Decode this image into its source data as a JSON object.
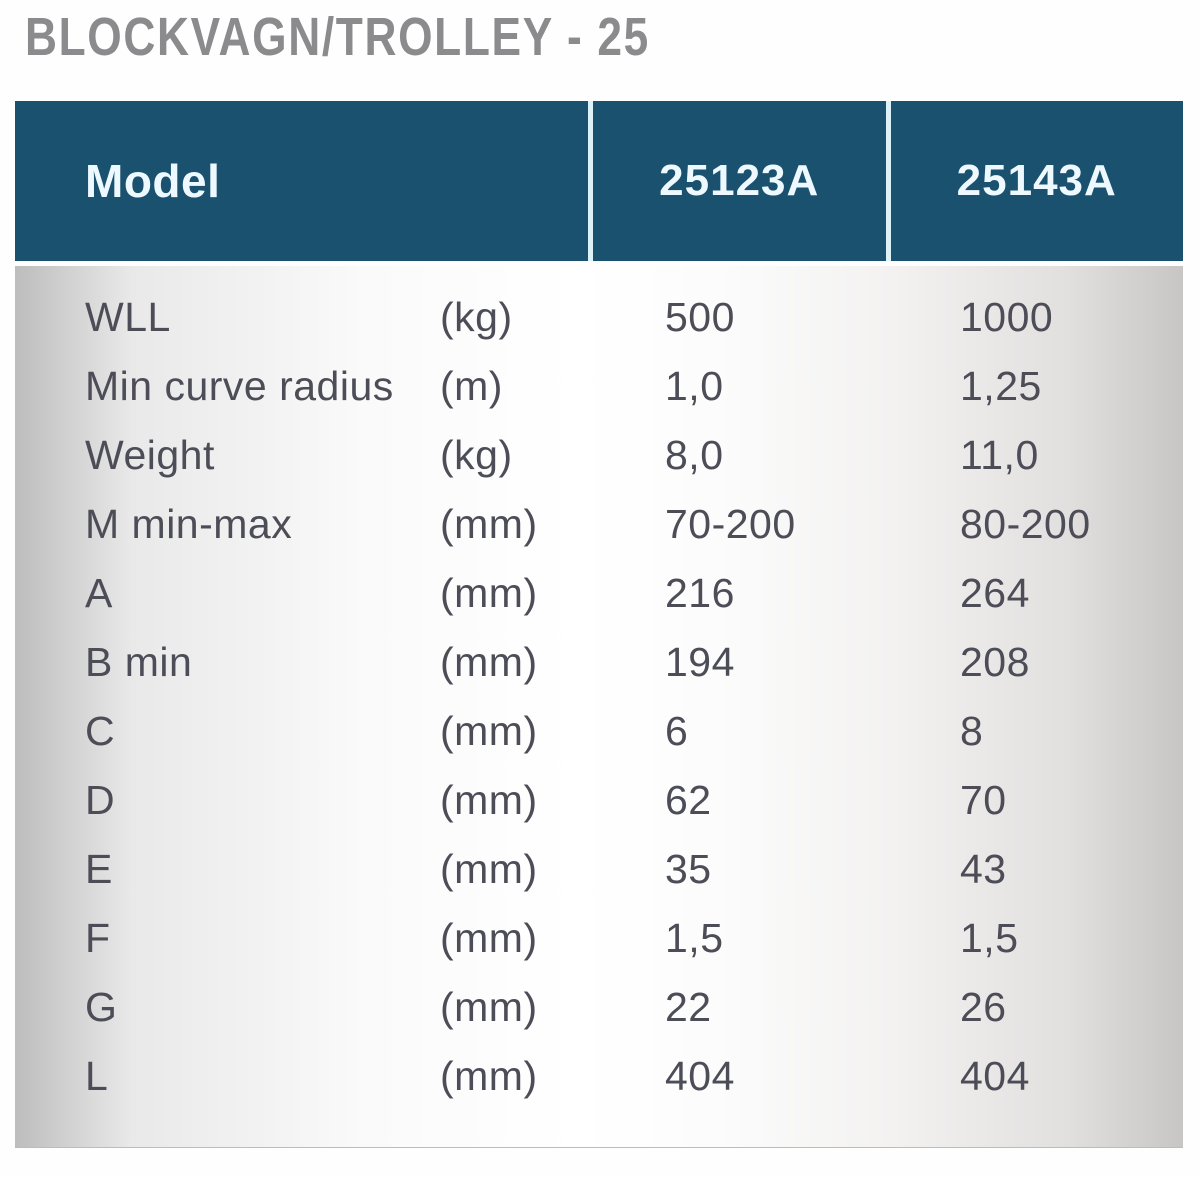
{
  "title": "BLOCKVAGN/TROLLEY - 25",
  "table": {
    "header": {
      "model_label": "Model",
      "columns": [
        "25123A",
        "25143A"
      ]
    },
    "rows": [
      {
        "label": "WLL",
        "unit": "(kg)",
        "values": [
          "500",
          "1000"
        ]
      },
      {
        "label": "Min curve radius",
        "unit": "(m)",
        "values": [
          "1,0",
          "1,25"
        ]
      },
      {
        "label": "Weight",
        "unit": "(kg)",
        "values": [
          "8,0",
          "11,0"
        ]
      },
      {
        "label": "M min-max",
        "unit": "(mm)",
        "values": [
          "70-200",
          "80-200"
        ]
      },
      {
        "label": "A",
        "unit": "(mm)",
        "values": [
          "216",
          "264"
        ]
      },
      {
        "label": "B min",
        "unit": "(mm)",
        "values": [
          "194",
          "208"
        ]
      },
      {
        "label": "C",
        "unit": "(mm)",
        "values": [
          "6",
          "8"
        ]
      },
      {
        "label": "D",
        "unit": "(mm)",
        "values": [
          "62",
          "70"
        ]
      },
      {
        "label": "E",
        "unit": "(mm)",
        "values": [
          "35",
          "43"
        ]
      },
      {
        "label": "F",
        "unit": "(mm)",
        "values": [
          "1,5",
          "1,5"
        ]
      },
      {
        "label": "G",
        "unit": "(mm)",
        "values": [
          "22",
          "26"
        ]
      },
      {
        "label": "L",
        "unit": "(mm)",
        "values": [
          "404",
          "404"
        ]
      }
    ]
  },
  "colors": {
    "header_bg": "#1a516f",
    "header_text": "#eef9ff",
    "body_text": "#4d4d58",
    "title_text": "#8b8b8d",
    "body_gradient_edge": "#c2c1c0"
  }
}
